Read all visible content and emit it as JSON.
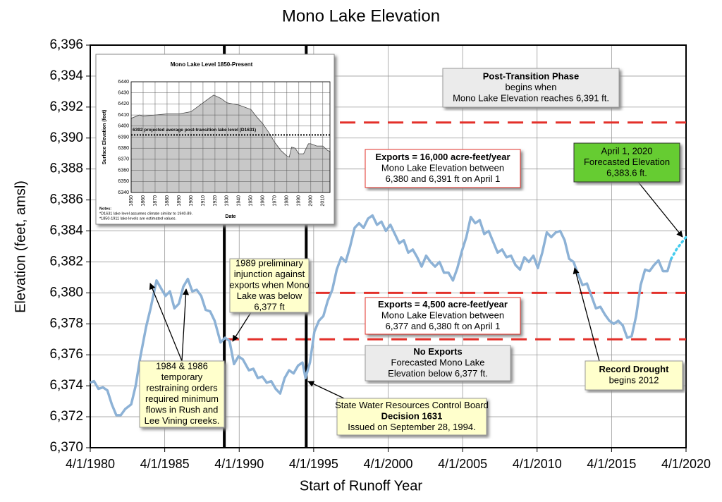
{
  "chart_data": [
    {
      "type": "line",
      "title": "Mono Lake Elevation",
      "xlabel": "Start of Runoff Year",
      "ylabel": "Elevation (feet, amsl)",
      "xlim": [
        1980.25,
        2020.25
      ],
      "xticks": [
        {
          "value": 1980.25,
          "label": "4/1/1980"
        },
        {
          "value": 1985.25,
          "label": "4/1/1985"
        },
        {
          "value": 1990.25,
          "label": "4/1/1990"
        },
        {
          "value": 1995.25,
          "label": "4/1/1995"
        },
        {
          "value": 2000.25,
          "label": "4/1/2000"
        },
        {
          "value": 2005.25,
          "label": "4/1/2005"
        },
        {
          "value": 2010.25,
          "label": "4/1/2010"
        },
        {
          "value": 2015.25,
          "label": "4/1/2015"
        },
        {
          "value": 2020.25,
          "label": "4/1/2020"
        }
      ],
      "ylim": [
        6370,
        6396
      ],
      "yticks": [
        {
          "value": 6370,
          "label": "6,370"
        },
        {
          "value": 6372,
          "label": "6,372"
        },
        {
          "value": 6374,
          "label": "6,374"
        },
        {
          "value": 6376,
          "label": "6,376"
        },
        {
          "value": 6378,
          "label": "6,378"
        },
        {
          "value": 6380,
          "label": "6,380"
        },
        {
          "value": 6382,
          "label": "6,382"
        },
        {
          "value": 6384,
          "label": "6,384"
        },
        {
          "value": 6386,
          "label": "6,386"
        },
        {
          "value": 6388,
          "label": "6,388"
        },
        {
          "value": 6390,
          "label": "6,390"
        },
        {
          "value": 6392,
          "label": "6,392"
        },
        {
          "value": 6394,
          "label": "6,394"
        },
        {
          "value": 6396,
          "label": "6,396"
        }
      ],
      "grid": true,
      "series": [
        {
          "color": "#8db2d6",
          "style": "solid",
          "x": [
            1980.25,
            1980.5,
            1980.8,
            1981.1,
            1981.4,
            1981.7,
            1982.0,
            1982.3,
            1982.6,
            1983.0,
            1983.3,
            1983.6,
            1984.0,
            1984.3,
            1984.7,
            1985.0,
            1985.3,
            1985.6,
            1985.9,
            1986.2,
            1986.5,
            1986.8,
            1987.1,
            1987.4,
            1987.7,
            1988.0,
            1988.3,
            1988.6,
            1989.0,
            1989.3,
            1989.6,
            1989.9,
            1990.2,
            1990.5,
            1990.9,
            1991.2,
            1991.5,
            1991.8,
            1992.1,
            1992.4,
            1992.7,
            1993.0,
            1993.3,
            1993.6,
            1993.9,
            1994.2,
            1994.5,
            1994.7,
            1995.0,
            1995.3,
            1995.6,
            1995.9,
            1996.2,
            1996.5,
            1996.8,
            1997.1,
            1997.4,
            1997.7,
            1998.0,
            1998.3,
            1998.6,
            1998.9,
            1999.2,
            1999.5,
            1999.8,
            2000.1,
            2000.4,
            2000.7,
            2001.0,
            2001.3,
            2001.6,
            2001.9,
            2002.2,
            2002.5,
            2002.8,
            2003.1,
            2003.4,
            2003.7,
            2004.0,
            2004.3,
            2004.6,
            2004.9,
            2005.2,
            2005.5,
            2005.8,
            2006.1,
            2006.4,
            2006.7,
            2007.0,
            2007.3,
            2007.6,
            2007.9,
            2008.2,
            2008.5,
            2008.8,
            2009.1,
            2009.4,
            2009.7,
            2010.0,
            2010.3,
            2010.6,
            2010.9,
            2011.2,
            2011.5,
            2011.8,
            2012.1,
            2012.4,
            2012.7,
            2013.0,
            2013.3,
            2013.6,
            2013.9,
            2014.2,
            2014.5,
            2014.8,
            2015.1,
            2015.4,
            2015.7,
            2016.0,
            2016.3,
            2016.6,
            2016.9,
            2017.2,
            2017.5,
            2017.8,
            2018.1,
            2018.4,
            2018.7,
            2019.0,
            2019.25
          ],
          "values": [
            6374.2,
            6374.3,
            6373.8,
            6373.9,
            6373.7,
            6372.8,
            6372.1,
            6372.1,
            6372.5,
            6372.8,
            6374,
            6375.8,
            6377.8,
            6379,
            6380.8,
            6380.3,
            6379.8,
            6380.1,
            6379,
            6379.3,
            6380.4,
            6380.9,
            6380.1,
            6380.2,
            6379.8,
            6378.9,
            6378.8,
            6378.2,
            6376.8,
            6377.1,
            6376.9,
            6375.4,
            6375.9,
            6375.7,
            6375,
            6375.1,
            6374.5,
            6374.6,
            6374.2,
            6374.3,
            6373.8,
            6373.5,
            6374.5,
            6375,
            6374.8,
            6375.3,
            6375.5,
            6374.5,
            6375.5,
            6377.5,
            6378.2,
            6378.5,
            6379.5,
            6380.2,
            6381.5,
            6382.3,
            6382,
            6383,
            6384.2,
            6384.5,
            6384.2,
            6384.8,
            6385,
            6384.4,
            6384.6,
            6384,
            6384.4,
            6383.8,
            6383.2,
            6383.4,
            6382.6,
            6382.8,
            6382.3,
            6381.7,
            6382.4,
            6382,
            6381.7,
            6382,
            6381.3,
            6381.3,
            6380.8,
            6381.6,
            6382.7,
            6383.6,
            6384.9,
            6384.5,
            6384.7,
            6383.8,
            6384,
            6383.3,
            6382.6,
            6382.8,
            6382.3,
            6382.4,
            6381.8,
            6381.5,
            6382.3,
            6382,
            6382.4,
            6381.6,
            6382.6,
            6383.9,
            6383.6,
            6383.9,
            6384,
            6383.4,
            6382.2,
            6382,
            6381.2,
            6380.5,
            6380.6,
            6379.8,
            6379,
            6379.1,
            6378.6,
            6378.2,
            6378,
            6378.2,
            6377.9,
            6377.1,
            6377.2,
            6378.5,
            6380.5,
            6381.5,
            6381.4,
            6381.8,
            6382.1,
            6381.4,
            6381.4,
            6382.2
          ]
        },
        {
          "color": "#44ccee",
          "style": "dotted",
          "x": [
            2019.25,
            2019.6,
            2020.0,
            2020.25
          ],
          "values": [
            6382.2,
            6382.8,
            6383.3,
            6383.6
          ]
        }
      ],
      "reference_lines": [
        {
          "y": 6391,
          "x": [
            1995.4,
            2020.25
          ]
        },
        {
          "y": 6380,
          "x": [
            1995.4,
            2020.25
          ]
        },
        {
          "y": 6377,
          "x": [
            1989.2,
            2020.25
          ]
        }
      ],
      "reference_color": "#e3302a",
      "vertical_lines": [
        1989.25,
        1994.75
      ],
      "annotations": [
        {
          "lines": [
            "Post-Transition Phase",
            "begins when",
            "Mono Lake Elevation reaches 6,391 ft."
          ]
        },
        {
          "lines": [
            "Exports = 16,000 acre-feet/year",
            "Mono Lake Elevation between",
            "6,380 and 6,391 ft on April 1"
          ]
        },
        {
          "lines": [
            "April 1, 2020",
            "Forecasted Elevation",
            "6,383.6 ft."
          ]
        },
        {
          "lines": [
            "1989 preliminary",
            "injunction against",
            "exports when Mono",
            "Lake was below",
            "6,377 ft"
          ]
        },
        {
          "lines": [
            "Exports = 4,500 acre-feet/year",
            "Mono Lake Elevation between",
            "6,377 and 6,380 ft on April 1"
          ]
        },
        {
          "lines": [
            "No Exports",
            "Forecasted Mono Lake",
            "Elevation below 6,377 ft."
          ]
        },
        {
          "lines": [
            "1984 & 1986",
            "temporary",
            "restraining orders",
            "required minimum",
            "flows in Rush and",
            "Lee Vining creeks."
          ]
        },
        {
          "lines": [
            "State Water Resources Control Board",
            "Decision 1631",
            "Issued on September 28, 1994."
          ]
        },
        {
          "lines": [
            "Record Drought",
            "begins 2012"
          ]
        }
      ]
    },
    {
      "type": "area",
      "title": "Mono Lake Level 1850-Present",
      "xlabel": "Date",
      "ylabel": "Surface Elevation (feet)",
      "xlim": [
        1850,
        2016
      ],
      "xticks": [
        1850,
        1860,
        1870,
        1880,
        1890,
        1900,
        1910,
        1920,
        1930,
        1940,
        1950,
        1960,
        1970,
        1980,
        1990,
        2000,
        2010
      ],
      "ylim": [
        6340,
        6440
      ],
      "yticks": [
        6340,
        6350,
        6360,
        6370,
        6380,
        6390,
        6400,
        6410,
        6420,
        6430,
        6440
      ],
      "grid": true,
      "color": "#c8c8c8",
      "x": [
        1850,
        1857,
        1860,
        1870,
        1880,
        1890,
        1900,
        1910,
        1915,
        1919,
        1925,
        1930,
        1940,
        1945,
        1950,
        1955,
        1960,
        1965,
        1970,
        1975,
        1980,
        1982,
        1984,
        1987,
        1990,
        1994,
        1998,
        2000,
        2005,
        2010,
        2014,
        2016
      ],
      "values": [
        6407,
        6410,
        6409,
        6410,
        6411,
        6411,
        6413,
        6421,
        6425,
        6428,
        6425,
        6421,
        6419,
        6417,
        6415,
        6408,
        6402,
        6394,
        6385,
        6378,
        6373,
        6372,
        6381,
        6380,
        6375,
        6375,
        6384,
        6384,
        6382,
        6382,
        6378,
        6377
      ],
      "reference_value": 6392,
      "reference_label": "6392 projected average post-transition  lake level (D1631)",
      "notes": [
        "Notes:",
        "*D1631 lake level assumes climate similar to 1940-89.",
        "*1850-1911 lake levels are estimated values."
      ]
    }
  ]
}
